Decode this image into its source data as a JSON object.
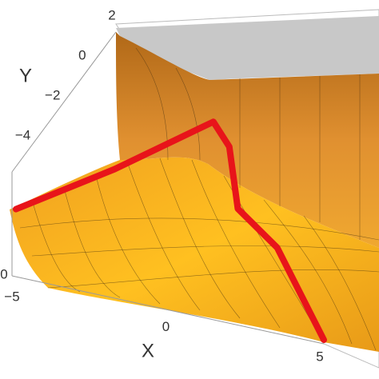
{
  "chart_data": {
    "type": "surface3d",
    "xlabel": "X",
    "ylabel": "Y",
    "xlim": [
      -5,
      5
    ],
    "ylim": [
      -5,
      2
    ],
    "zlim": [
      0,
      1
    ],
    "xticks": [
      {
        "value": -5,
        "label": "−5"
      },
      0,
      5
    ],
    "yticks": [
      2,
      0,
      {
        "value": -2,
        "label": "−2"
      },
      {
        "value": -4,
        "label": "−4"
      }
    ],
    "zticks": [
      0
    ],
    "series": [
      {
        "color": "#e8141a",
        "x": [
          -5,
          -3,
          -1,
          0,
          1,
          3,
          5
        ],
        "y": [
          -5,
          -2.5,
          0,
          -1,
          -2.5,
          -4,
          -5
        ],
        "z": [
          0.68,
          0.7,
          0.79,
          0.8,
          0.55,
          0.58,
          0
        ]
      }
    ]
  }
}
